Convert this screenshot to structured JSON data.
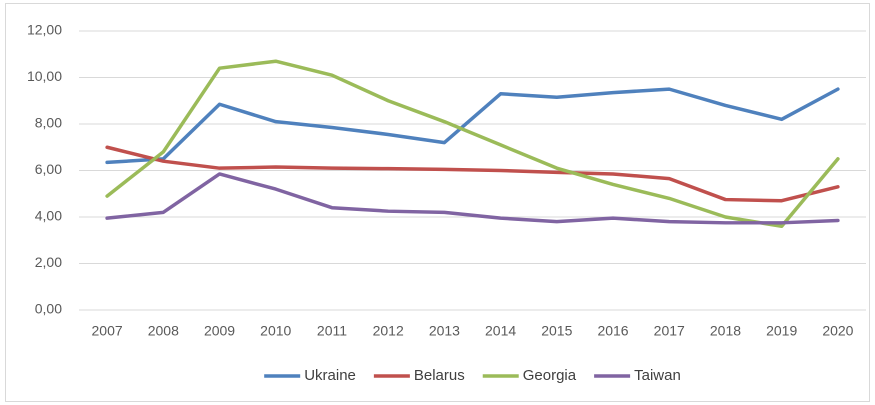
{
  "chart_data": {
    "type": "line",
    "categories": [
      "2007",
      "2008",
      "2009",
      "2010",
      "2011",
      "2012",
      "2013",
      "2014",
      "2015",
      "2016",
      "2017",
      "2018",
      "2019",
      "2020"
    ],
    "series": [
      {
        "name": "Ukraine",
        "color": "#4f81bd",
        "values": [
          6.35,
          6.5,
          8.85,
          8.1,
          7.85,
          7.55,
          7.2,
          9.3,
          9.15,
          9.35,
          9.5,
          8.8,
          8.2,
          9.5
        ]
      },
      {
        "name": "Belarus",
        "color": "#c0504d",
        "values": [
          7.0,
          6.4,
          6.1,
          6.15,
          6.1,
          6.08,
          6.05,
          6.0,
          5.92,
          5.85,
          5.65,
          4.75,
          4.7,
          5.3
        ]
      },
      {
        "name": "Georgia",
        "color": "#9bbb59",
        "values": [
          4.9,
          6.8,
          10.4,
          10.7,
          10.1,
          9.0,
          8.1,
          7.1,
          6.1,
          5.4,
          4.8,
          4.0,
          3.6,
          6.5
        ]
      },
      {
        "name": "Taiwan",
        "color": "#8064a2",
        "values": [
          3.95,
          4.2,
          5.85,
          5.2,
          4.4,
          4.25,
          4.2,
          3.95,
          3.8,
          3.95,
          3.8,
          3.75,
          3.75,
          3.85
        ]
      }
    ],
    "ylim": [
      0,
      12
    ],
    "yticks": [
      {
        "value": 0,
        "label": "0,00"
      },
      {
        "value": 2,
        "label": "2,00"
      },
      {
        "value": 4,
        "label": "4,00"
      },
      {
        "value": 6,
        "label": "6,00"
      },
      {
        "value": 8,
        "label": "8,00"
      },
      {
        "value": 10,
        "label": "10,00"
      },
      {
        "value": 12,
        "label": "12,00"
      }
    ],
    "grid": true,
    "legend": "bottom"
  }
}
